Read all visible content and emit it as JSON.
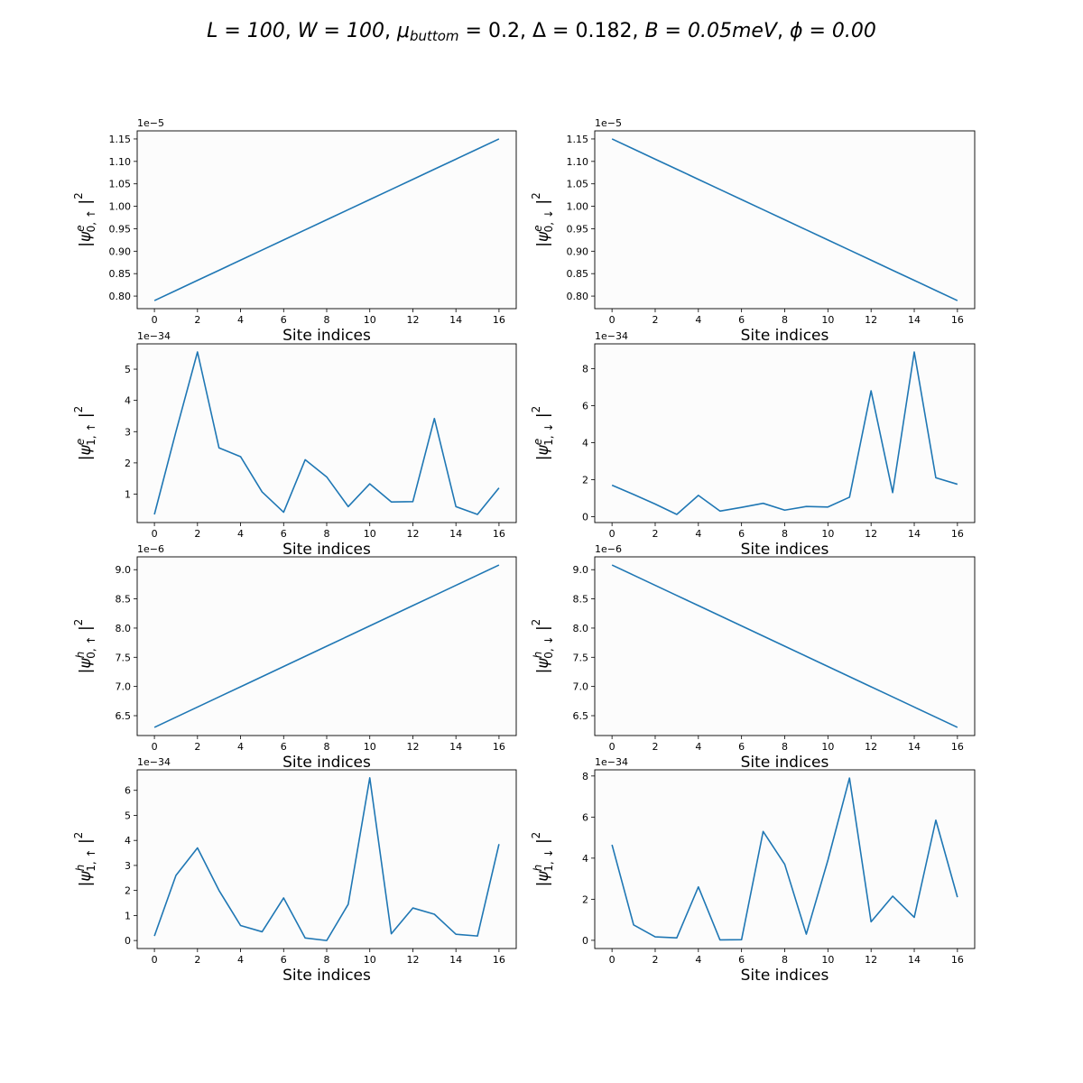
{
  "figure": {
    "title": "L = 100, W = 100, μ_buttom = 0.2, Δ = 0.182, B = 0.05meV, ϕ = 0.00",
    "title_parts": {
      "L": "L = 100",
      "W": "W = 100",
      "mu_symbol": "μ",
      "mu_sub": "buttom",
      "mu_val": " = 0.2",
      "delta": "Δ = 0.182",
      "B_val": "B = 0.05",
      "B_unit": "meV",
      "phi": "ϕ = 0.00"
    }
  },
  "chart_data": [
    {
      "type": "line",
      "id": "e0up",
      "ylabel": {
        "psi": "ψ",
        "sup": "e",
        "sub": "0, ↑",
        "pow": "2"
      },
      "xlabel": "Site indices",
      "multiplier": "1e−5",
      "x": [
        0,
        1,
        2,
        3,
        4,
        5,
        6,
        7,
        8,
        9,
        10,
        11,
        12,
        13,
        14,
        15,
        16
      ],
      "y": [
        0.79,
        0.8125,
        0.835,
        0.8575,
        0.88,
        0.9025,
        0.925,
        0.9475,
        0.97,
        0.9925,
        1.015,
        1.0375,
        1.06,
        1.0825,
        1.105,
        1.1275,
        1.15
      ],
      "ylim": [
        0.772,
        1.168
      ],
      "yticks": [
        0.8,
        0.85,
        0.9,
        0.95,
        1.0,
        1.05,
        1.1,
        1.15
      ],
      "ytick_labels": [
        "0.80",
        "0.85",
        "0.90",
        "0.95",
        "1.00",
        "1.05",
        "1.10",
        "1.15"
      ],
      "xlim": [
        -0.8,
        16.8
      ],
      "xticks": [
        0,
        2,
        4,
        6,
        8,
        10,
        12,
        14,
        16
      ],
      "xtick_labels": [
        "0",
        "2",
        "4",
        "6",
        "8",
        "10",
        "12",
        "14",
        "16"
      ],
      "color": "#1f77b4"
    },
    {
      "type": "line",
      "id": "e0down",
      "ylabel": {
        "psi": "ψ",
        "sup": "e",
        "sub": "0, ↓",
        "pow": "2"
      },
      "xlabel": "Site indices",
      "multiplier": "1e−5",
      "x": [
        0,
        1,
        2,
        3,
        4,
        5,
        6,
        7,
        8,
        9,
        10,
        11,
        12,
        13,
        14,
        15,
        16
      ],
      "y": [
        1.15,
        1.1275,
        1.105,
        1.0825,
        1.06,
        1.0375,
        1.015,
        0.9925,
        0.97,
        0.9475,
        0.925,
        0.9025,
        0.88,
        0.8575,
        0.835,
        0.8125,
        0.79
      ],
      "ylim": [
        0.772,
        1.168
      ],
      "yticks": [
        0.8,
        0.85,
        0.9,
        0.95,
        1.0,
        1.05,
        1.1,
        1.15
      ],
      "ytick_labels": [
        "0.80",
        "0.85",
        "0.90",
        "0.95",
        "1.00",
        "1.05",
        "1.10",
        "1.15"
      ],
      "xlim": [
        -0.8,
        16.8
      ],
      "xticks": [
        0,
        2,
        4,
        6,
        8,
        10,
        12,
        14,
        16
      ],
      "xtick_labels": [
        "0",
        "2",
        "4",
        "6",
        "8",
        "10",
        "12",
        "14",
        "16"
      ],
      "color": "#1f77b4"
    },
    {
      "type": "line",
      "id": "e1up",
      "ylabel": {
        "psi": "ψ",
        "sup": "e",
        "sub": "1, ↑",
        "pow": "2"
      },
      "xlabel": "Site indices",
      "multiplier": "1e−34",
      "x": [
        0,
        1,
        2,
        3,
        4,
        5,
        6,
        7,
        8,
        9,
        10,
        11,
        12,
        13,
        14,
        15,
        16
      ],
      "y": [
        0.35,
        3.0,
        5.55,
        2.48,
        2.2,
        1.07,
        0.42,
        2.1,
        1.55,
        0.6,
        1.33,
        0.75,
        0.76,
        3.42,
        0.6,
        0.35,
        1.2
      ],
      "ylim": [
        0.09,
        5.81
      ],
      "yticks": [
        1,
        2,
        3,
        4,
        5
      ],
      "ytick_labels": [
        "1",
        "2",
        "3",
        "4",
        "5"
      ],
      "xlim": [
        -0.8,
        16.8
      ],
      "xticks": [
        0,
        2,
        4,
        6,
        8,
        10,
        12,
        14,
        16
      ],
      "xtick_labels": [
        "0",
        "2",
        "4",
        "6",
        "8",
        "10",
        "12",
        "14",
        "16"
      ],
      "color": "#1f77b4"
    },
    {
      "type": "line",
      "id": "e1down",
      "ylabel": {
        "psi": "ψ",
        "sup": "e",
        "sub": "1, ↓",
        "pow": "2"
      },
      "xlabel": "Site indices",
      "multiplier": "1e−34",
      "x": [
        0,
        1,
        2,
        3,
        4,
        5,
        6,
        7,
        8,
        9,
        10,
        11,
        12,
        13,
        14,
        15,
        16
      ],
      "y": [
        1.7,
        1.2,
        0.68,
        0.12,
        1.15,
        0.3,
        0.5,
        0.72,
        0.35,
        0.55,
        0.52,
        1.05,
        6.8,
        1.3,
        8.9,
        2.1,
        1.75
      ],
      "ylim": [
        -0.32,
        9.34
      ],
      "yticks": [
        0,
        2,
        4,
        6,
        8
      ],
      "ytick_labels": [
        "0",
        "2",
        "4",
        "6",
        "8"
      ],
      "xlim": [
        -0.8,
        16.8
      ],
      "xticks": [
        0,
        2,
        4,
        6,
        8,
        10,
        12,
        14,
        16
      ],
      "xtick_labels": [
        "0",
        "2",
        "4",
        "6",
        "8",
        "10",
        "12",
        "14",
        "16"
      ],
      "color": "#1f77b4"
    },
    {
      "type": "line",
      "id": "h0up",
      "ylabel": {
        "psi": "ψ",
        "sup": "h",
        "sub": "0, ↑",
        "pow": "2"
      },
      "xlabel": "Site indices",
      "multiplier": "1e−6",
      "x": [
        0,
        1,
        2,
        3,
        4,
        5,
        6,
        7,
        8,
        9,
        10,
        11,
        12,
        13,
        14,
        15,
        16
      ],
      "y": [
        6.3,
        6.47375,
        6.6475,
        6.82125,
        6.995,
        7.16875,
        7.3425,
        7.51625,
        7.69,
        7.86375,
        8.0375,
        8.21125,
        8.385,
        8.55875,
        8.7325,
        8.90625,
        9.08
      ],
      "ylim": [
        6.16,
        9.22
      ],
      "yticks": [
        6.5,
        7.0,
        7.5,
        8.0,
        8.5,
        9.0
      ],
      "ytick_labels": [
        "6.5",
        "7.0",
        "7.5",
        "8.0",
        "8.5",
        "9.0"
      ],
      "xlim": [
        -0.8,
        16.8
      ],
      "xticks": [
        0,
        2,
        4,
        6,
        8,
        10,
        12,
        14,
        16
      ],
      "xtick_labels": [
        "0",
        "2",
        "4",
        "6",
        "8",
        "10",
        "12",
        "14",
        "16"
      ],
      "color": "#1f77b4"
    },
    {
      "type": "line",
      "id": "h0down",
      "ylabel": {
        "psi": "ψ",
        "sup": "h",
        "sub": "0, ↓",
        "pow": "2"
      },
      "xlabel": "Site indices",
      "multiplier": "1e−6",
      "x": [
        0,
        1,
        2,
        3,
        4,
        5,
        6,
        7,
        8,
        9,
        10,
        11,
        12,
        13,
        14,
        15,
        16
      ],
      "y": [
        9.08,
        8.90625,
        8.7325,
        8.55875,
        8.385,
        8.21125,
        8.0375,
        7.86375,
        7.69,
        7.51625,
        7.3425,
        7.16875,
        6.995,
        6.82125,
        6.6475,
        6.47375,
        6.3
      ],
      "ylim": [
        6.16,
        9.22
      ],
      "yticks": [
        6.5,
        7.0,
        7.5,
        8.0,
        8.5,
        9.0
      ],
      "ytick_labels": [
        "6.5",
        "7.0",
        "7.5",
        "8.0",
        "8.5",
        "9.0"
      ],
      "xlim": [
        -0.8,
        16.8
      ],
      "xticks": [
        0,
        2,
        4,
        6,
        8,
        10,
        12,
        14,
        16
      ],
      "xtick_labels": [
        "0",
        "2",
        "4",
        "6",
        "8",
        "10",
        "12",
        "14",
        "16"
      ],
      "color": "#1f77b4"
    },
    {
      "type": "line",
      "id": "h1up",
      "ylabel": {
        "psi": "ψ",
        "sup": "h",
        "sub": "1, ↑",
        "pow": "2"
      },
      "xlabel": "Site indices",
      "multiplier": "1e−34",
      "x": [
        0,
        1,
        2,
        3,
        4,
        5,
        6,
        7,
        8,
        9,
        10,
        11,
        12,
        13,
        14,
        15,
        16
      ],
      "y": [
        0.18,
        2.6,
        3.7,
        2.0,
        0.6,
        0.35,
        1.7,
        0.1,
        0.0,
        1.45,
        6.5,
        0.27,
        1.3,
        1.05,
        0.25,
        0.18,
        3.85
      ],
      "ylim": [
        -0.32,
        6.82
      ],
      "yticks": [
        0,
        1,
        2,
        3,
        4,
        5,
        6
      ],
      "ytick_labels": [
        "0",
        "1",
        "2",
        "3",
        "4",
        "5",
        "6"
      ],
      "xlim": [
        -0.8,
        16.8
      ],
      "xticks": [
        0,
        2,
        4,
        6,
        8,
        10,
        12,
        14,
        16
      ],
      "xtick_labels": [
        "0",
        "2",
        "4",
        "6",
        "8",
        "10",
        "12",
        "14",
        "16"
      ],
      "color": "#1f77b4"
    },
    {
      "type": "line",
      "id": "h1down",
      "ylabel": {
        "psi": "ψ",
        "sup": "h",
        "sub": "1, ↓",
        "pow": "2"
      },
      "xlabel": "Site indices",
      "multiplier": "1e−34",
      "x": [
        0,
        1,
        2,
        3,
        4,
        5,
        6,
        7,
        8,
        9,
        10,
        11,
        12,
        13,
        14,
        15,
        16
      ],
      "y": [
        4.65,
        0.75,
        0.17,
        0.12,
        2.6,
        0.02,
        0.03,
        5.3,
        3.7,
        0.3,
        3.9,
        7.9,
        0.9,
        2.15,
        1.12,
        5.85,
        2.1
      ],
      "ylim": [
        -0.4,
        8.3
      ],
      "yticks": [
        0,
        2,
        4,
        6,
        8
      ],
      "ytick_labels": [
        "0",
        "2",
        "4",
        "6",
        "8"
      ],
      "xlim": [
        -0.8,
        16.8
      ],
      "xticks": [
        0,
        2,
        4,
        6,
        8,
        10,
        12,
        14,
        16
      ],
      "xtick_labels": [
        "0",
        "2",
        "4",
        "6",
        "8",
        "10",
        "12",
        "14",
        "16"
      ],
      "color": "#1f77b4"
    }
  ]
}
